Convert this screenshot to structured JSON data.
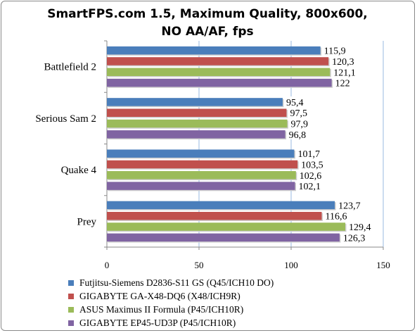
{
  "chart_data": {
    "type": "bar",
    "orientation": "horizontal",
    "title": "SmartFPS.com 1.5, Maximum Quality, 800x600, NO AA/AF, fps",
    "categories": [
      "Battlefield 2",
      "Serious Sam 2",
      "Quake 4",
      "Prey"
    ],
    "series": [
      {
        "name": "Futjitsu-Siemens D2836-S11 GS (Q45/ICH10 DO)",
        "color": "#4a7ebb",
        "values": [
          115.9,
          95.4,
          101.7,
          123.7
        ],
        "labels": [
          "115,9",
          "95,4",
          "101,7",
          "123,7"
        ]
      },
      {
        "name": "GIGABYTE GA-X48-DQ6 (X48/ICH9R)",
        "color": "#c0504d",
        "values": [
          120.3,
          97.5,
          103.5,
          116.6
        ],
        "labels": [
          "120,3",
          "97,5",
          "103,5",
          "116,6"
        ]
      },
      {
        "name": "ASUS Maximus II Formula (P45/ICH10R)",
        "color": "#9bbb59",
        "values": [
          121.1,
          97.9,
          102.6,
          129.4
        ],
        "labels": [
          "121,1",
          "97,9",
          "102,6",
          "129,4"
        ]
      },
      {
        "name": "GIGABYTE EP45-UD3P (P45/ICH10R)",
        "color": "#8064a2",
        "values": [
          122,
          96.8,
          102.1,
          126.3
        ],
        "labels": [
          "122",
          "96,8",
          "102,1",
          "126,3"
        ]
      }
    ],
    "xlim": [
      0,
      150
    ],
    "xticks": [
      "0",
      "50",
      "100",
      "150"
    ],
    "grid": true,
    "legend_position": "bottom"
  }
}
